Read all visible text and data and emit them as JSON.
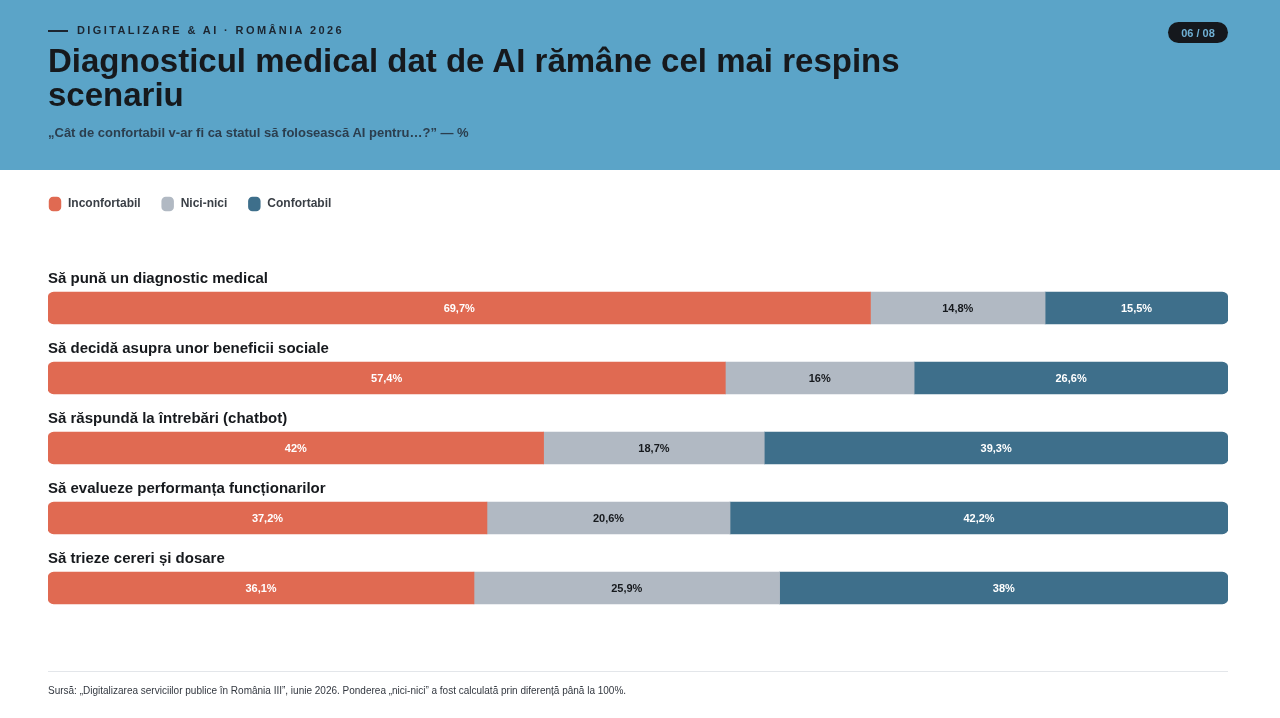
{
  "chart_data": {
    "type": "bar",
    "orientation": "horizontal",
    "stacked": true,
    "title": "Diagnosticul medical dat de AI rămâne cel mai respins scenariu",
    "subtitle": "„Cât de confortabil v-ar fi ca statul să folosească AI pentru…?” — %",
    "categories": [
      "Să pună un diagnostic medical",
      "Să decidă asupra unor beneficii sociale",
      "Să răspundă la întrebări (chatbot)",
      "Să evalueze performanța funcționarilor",
      "Să trieze cereri și dosare"
    ],
    "series": [
      {
        "name": "Inconfortabil",
        "color": "#e06a52",
        "values": [
          69.7,
          57.4,
          42,
          37.2,
          36.1
        ],
        "value_labels": [
          "69,7%",
          "57,4%",
          "42%",
          "37,2%",
          "36,1%"
        ]
      },
      {
        "name": "Nici-nici",
        "color": "#b1b9c3",
        "values": [
          14.8,
          16,
          18.7,
          20.6,
          25.9
        ],
        "value_labels": [
          "14,8%",
          "16%",
          "18,7%",
          "20,6%",
          "25,9%"
        ]
      },
      {
        "name": "Confortabil",
        "color": "#3e6f8b",
        "values": [
          15.5,
          26.6,
          39.3,
          42.2,
          38
        ],
        "value_labels": [
          "15,5%",
          "26,6%",
          "39,3%",
          "42,2%",
          "38%"
        ]
      }
    ],
    "xlim": [
      0,
      100
    ],
    "tick_labels": "y",
    "legend": "top left",
    "annotations": [
      "DIGITALIZARE & AI · ROMÂNIA 2026",
      "06 / 08",
      "Sursă: „Digitalizarea serviciilor publice în România III”, iunie 2026. Ponderea „nici-nici” a fost calculată prin diferență până la 100%."
    ]
  }
}
